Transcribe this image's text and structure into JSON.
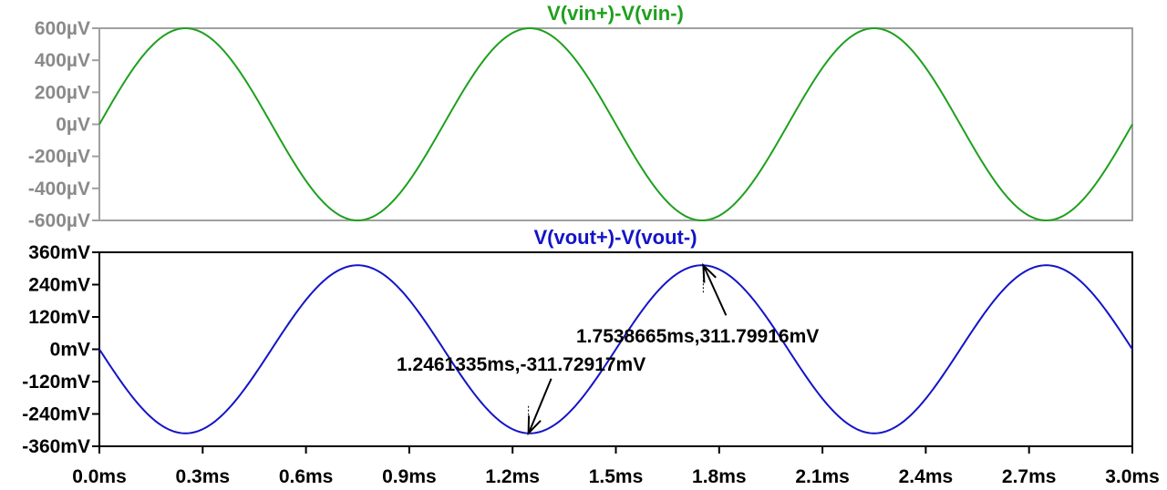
{
  "chart_data": [
    {
      "type": "line",
      "title": "V(vin+)-V(vin-)",
      "title_color": "#1ea01e",
      "series": [
        {
          "name": "V(vin+)-V(vin-)",
          "color": "#1ea01e",
          "x": [
            0.0,
            0.25,
            0.5,
            0.75,
            1.0,
            1.25,
            1.5,
            1.75,
            2.0,
            2.25,
            2.5,
            2.75,
            3.0
          ],
          "values": [
            0,
            600,
            0,
            -600,
            0,
            600,
            0,
            -600,
            0,
            600,
            0,
            -600,
            0
          ],
          "shape": "sine",
          "amplitude": 600,
          "period": 1.0,
          "phase_sign": 1
        }
      ],
      "ylim": [
        -600,
        600
      ],
      "yticks": [
        600,
        400,
        200,
        0,
        -200,
        -400,
        -600
      ],
      "ytick_labels": [
        "600µV",
        "400µV",
        "200µV",
        "0µV",
        "-200µV",
        "-400µV",
        "-600µV"
      ],
      "ytick_color": "#8a8a8a",
      "frame_color": "#a0a0a0",
      "xlim": [
        0,
        3.0
      ]
    },
    {
      "type": "line",
      "title": "V(vout+)-V(vout-)",
      "title_color": "#1414c8",
      "series": [
        {
          "name": "V(vout+)-V(vout-)",
          "color": "#1414c8",
          "x": [
            0.0,
            0.25,
            0.5,
            0.75,
            1.0,
            1.25,
            1.5,
            1.75,
            2.0,
            2.25,
            2.5,
            2.75,
            3.0
          ],
          "values": [
            0,
            -311.8,
            0,
            311.8,
            0,
            -311.8,
            0,
            311.8,
            0,
            -311.8,
            0,
            311.8,
            0
          ],
          "shape": "sine",
          "amplitude": 311.8,
          "period": 1.0,
          "phase_sign": -1
        }
      ],
      "ylim": [
        -360,
        360
      ],
      "yticks": [
        360,
        240,
        120,
        0,
        -120,
        -240,
        -360
      ],
      "ytick_labels": [
        "360mV",
        "240mV",
        "120mV",
        "0mV",
        "-120mV",
        "-240mV",
        "-360mV"
      ],
      "ytick_color": "#000000",
      "frame_color": "#000000",
      "xlim": [
        0,
        3.0
      ],
      "xticks": [
        0.0,
        0.3,
        0.6,
        0.9,
        1.2,
        1.5,
        1.8,
        2.1,
        2.4,
        2.7,
        3.0
      ],
      "xtick_labels": [
        "0.0ms",
        "0.3ms",
        "0.6ms",
        "0.9ms",
        "1.2ms",
        "1.5ms",
        "1.8ms",
        "2.1ms",
        "2.4ms",
        "2.7ms",
        "3.0ms"
      ],
      "annotations": [
        {
          "text": "1.2461335ms,-311.72917mV",
          "x": 1.2461335,
          "y": -311.72917
        },
        {
          "text": "1.7538665ms,311.79916mV",
          "x": 1.7538665,
          "y": 311.79916
        }
      ]
    }
  ]
}
